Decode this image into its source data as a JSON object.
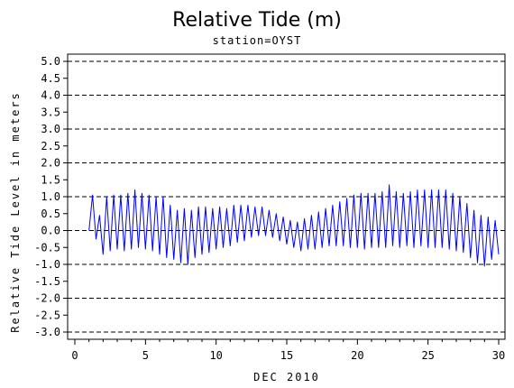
{
  "chart_data": {
    "type": "line",
    "title": "Relative Tide (m)",
    "subtitle": "station=OYST",
    "xlabel": "DEC 2010",
    "ylabel": "Relative Tide Level in meters",
    "xlim": [
      0,
      30
    ],
    "ylim": [
      -3.0,
      5.0
    ],
    "x_ticks": [
      "0",
      "5",
      "10",
      "15",
      "20",
      "25",
      "30"
    ],
    "y_ticks": [
      "-3.0",
      "-2.5",
      "-2.0",
      "-1.5",
      "-1.0",
      "-0.5",
      "0.0",
      "0.5",
      "1.0",
      "1.5",
      "2.0",
      "2.5",
      "3.0",
      "3.5",
      "4.0",
      "4.5",
      "5.0"
    ],
    "reference_lines": [
      -3.0,
      -2.0,
      -1.0,
      0.0,
      1.0,
      2.0,
      3.0,
      4.0,
      5.0
    ],
    "grid": false,
    "line_color": "#0000ff",
    "series": [
      {
        "x": [
          1.0,
          1.25,
          1.5,
          1.75,
          2.0,
          2.25,
          2.5,
          2.75,
          3.0,
          3.25,
          3.5,
          3.75,
          4.0,
          4.25,
          4.5,
          4.75,
          5.0,
          5.25,
          5.5,
          5.75,
          6.0,
          6.25,
          6.5,
          6.75,
          7.0,
          7.25,
          7.5,
          7.75,
          8.0,
          8.25,
          8.5,
          8.75,
          9.0,
          9.25,
          9.5,
          9.75,
          10.0,
          10.25,
          10.5,
          10.75,
          11.0,
          11.25,
          11.5,
          11.75,
          12.0,
          12.25,
          12.5,
          12.75,
          13.0,
          13.25,
          13.5,
          13.75,
          14.0,
          14.25,
          14.5,
          14.75,
          15.0,
          15.25,
          15.5,
          15.75,
          16.0,
          16.25,
          16.5,
          16.75,
          17.0,
          17.25,
          17.5,
          17.75,
          18.0,
          18.25,
          18.5,
          18.75,
          19.0,
          19.25,
          19.5,
          19.75,
          20.0,
          20.25,
          20.5,
          20.75,
          21.0,
          21.25,
          21.5,
          21.75,
          22.0,
          22.25,
          22.5,
          22.75,
          23.0,
          23.25,
          23.5,
          23.75,
          24.0,
          24.25,
          24.5,
          24.75,
          25.0,
          25.25,
          25.5,
          25.75,
          26.0,
          26.25,
          26.5,
          26.75,
          27.0,
          27.25,
          27.5,
          27.75,
          28.0,
          28.25,
          28.5,
          28.75,
          29.0,
          29.25,
          29.5,
          29.75,
          30.0
        ],
        "y": [
          0.0,
          1.05,
          -0.25,
          0.45,
          -0.7,
          1.0,
          -0.6,
          1.05,
          -0.55,
          1.05,
          -0.6,
          1.1,
          -0.55,
          1.2,
          -0.5,
          1.1,
          -0.55,
          1.05,
          -0.6,
          1.0,
          -0.7,
          1.0,
          -0.8,
          0.75,
          -0.85,
          0.6,
          -0.95,
          0.65,
          -1.0,
          0.6,
          -0.8,
          0.7,
          -0.7,
          0.7,
          -0.65,
          0.65,
          -0.55,
          0.7,
          -0.5,
          0.65,
          -0.45,
          0.75,
          -0.35,
          0.75,
          -0.3,
          0.75,
          -0.2,
          0.7,
          -0.15,
          0.7,
          -0.15,
          0.6,
          -0.2,
          0.5,
          -0.3,
          0.4,
          -0.4,
          0.3,
          -0.5,
          0.25,
          -0.6,
          0.35,
          -0.55,
          0.45,
          -0.55,
          0.55,
          -0.5,
          0.65,
          -0.45,
          0.75,
          -0.45,
          0.85,
          -0.45,
          0.95,
          -0.5,
          1.05,
          -0.5,
          1.1,
          -0.55,
          1.1,
          -0.5,
          1.1,
          -0.5,
          1.15,
          -0.5,
          1.35,
          -0.45,
          1.15,
          -0.5,
          1.1,
          -0.45,
          1.15,
          -0.5,
          1.2,
          -0.45,
          1.2,
          -0.5,
          1.2,
          -0.5,
          1.2,
          -0.5,
          1.2,
          -0.55,
          1.1,
          -0.6,
          1.0,
          -0.65,
          0.8,
          -0.8,
          0.6,
          -0.95,
          0.45,
          -1.05,
          0.4,
          -0.85,
          0.3,
          -0.7
        ]
      }
    ]
  }
}
